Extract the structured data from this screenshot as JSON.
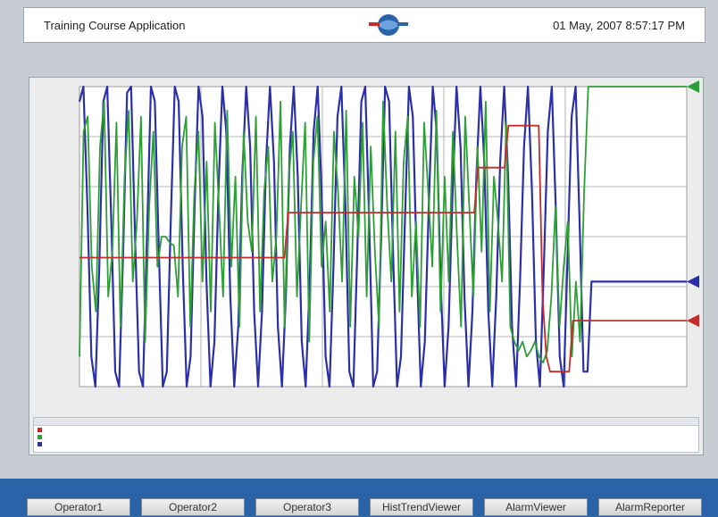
{
  "header": {
    "app_title": "Training Course Application",
    "datetime": "01 May, 2007 8:57:17 PM"
  },
  "chart_data": {
    "type": "line",
    "title": "",
    "xlabel": "",
    "ylabel": "",
    "ylim": [
      0,
      100
    ],
    "grid": true,
    "series": [
      {
        "color": "#2b2fa8",
        "marker_end": "triangle",
        "values": [
          95,
          100,
          60,
          10,
          0,
          40,
          95,
          100,
          55,
          5,
          0,
          45,
          98,
          100,
          50,
          5,
          0,
          50,
          100,
          95,
          45,
          0,
          5,
          55,
          100,
          95,
          40,
          0,
          10,
          60,
          100,
          90,
          35,
          0,
          15,
          65,
          100,
          85,
          30,
          0,
          20,
          70,
          100,
          80,
          25,
          0,
          25,
          75,
          100,
          75,
          20,
          0,
          30,
          80,
          100,
          70,
          15,
          0,
          35,
          85,
          100,
          65,
          10,
          0,
          40,
          90,
          100,
          60,
          5,
          0,
          45,
          95,
          100,
          55,
          0,
          5,
          50,
          100,
          95,
          45,
          0,
          10,
          55,
          100,
          90,
          40,
          0,
          15,
          60,
          100,
          85,
          35,
          0,
          20,
          65,
          100,
          80,
          30,
          0,
          25,
          70,
          100,
          75,
          25,
          0,
          30,
          75,
          100,
          70,
          20,
          0,
          35,
          80,
          100,
          65,
          15,
          0,
          40,
          85,
          100,
          60,
          10,
          0,
          45,
          90,
          100,
          55,
          5,
          5,
          35,
          35,
          35,
          35,
          35,
          35,
          35,
          35,
          35,
          35,
          35,
          35,
          35,
          35,
          35,
          35,
          35,
          35,
          35,
          35,
          35,
          35,
          35,
          35,
          35
        ]
      },
      {
        "color": "#2e9e37",
        "marker_end": "triangle",
        "values": [
          10,
          85,
          90,
          40,
          25,
          80,
          95,
          30,
          45,
          88,
          20,
          70,
          92,
          35,
          55,
          90,
          15,
          60,
          85,
          40,
          50,
          50,
          48,
          47,
          30,
          80,
          90,
          20,
          65,
          85,
          35,
          75,
          25,
          88,
          60,
          30,
          92,
          40,
          70,
          20,
          85,
          55,
          45,
          90,
          25,
          65,
          80,
          35,
          50,
          95,
          20,
          70,
          85,
          30,
          60,
          88,
          15,
          75,
          90,
          40,
          55,
          25,
          85,
          65,
          35,
          92,
          20,
          70,
          50,
          88,
          30,
          80,
          45,
          20,
          95,
          60,
          35,
          85,
          25,
          75,
          90,
          30,
          55,
          20,
          88,
          65,
          40,
          92,
          25,
          70,
          35,
          85,
          50,
          20,
          90,
          60,
          30,
          80,
          45,
          95,
          25,
          70,
          55,
          35,
          88,
          20,
          15,
          12,
          15,
          10,
          12,
          15,
          10,
          8,
          12,
          30,
          60,
          20,
          40,
          55,
          10,
          35,
          15,
          65,
          100,
          100,
          100,
          100,
          100,
          100,
          100,
          100,
          100,
          100,
          100,
          100,
          100,
          100,
          100,
          100,
          100,
          100,
          100,
          100,
          100,
          100,
          100,
          100,
          100
        ]
      },
      {
        "color": "#c72a2a",
        "marker_end": "triangle",
        "values": [
          43,
          43,
          43,
          43,
          43,
          43,
          43,
          43,
          43,
          43,
          43,
          43,
          43,
          43,
          43,
          43,
          43,
          43,
          43,
          43,
          43,
          43,
          43,
          43,
          43,
          43,
          43,
          43,
          43,
          43,
          43,
          43,
          43,
          43,
          43,
          43,
          43,
          43,
          43,
          43,
          43,
          43,
          43,
          43,
          43,
          43,
          43,
          43,
          43,
          43,
          43,
          43,
          43,
          43,
          43,
          58,
          58,
          58,
          58,
          58,
          58,
          58,
          58,
          58,
          58,
          58,
          58,
          58,
          58,
          58,
          58,
          58,
          58,
          58,
          58,
          58,
          58,
          58,
          58,
          58,
          58,
          58,
          58,
          58,
          58,
          58,
          58,
          58,
          58,
          58,
          58,
          58,
          58,
          58,
          58,
          58,
          58,
          58,
          58,
          58,
          58,
          58,
          58,
          58,
          58,
          73,
          73,
          73,
          73,
          73,
          73,
          73,
          73,
          87,
          87,
          87,
          87,
          87,
          87,
          87,
          87,
          87,
          30,
          10,
          5,
          5,
          5,
          5,
          5,
          5,
          22,
          22,
          22,
          22,
          22,
          22,
          22,
          22,
          22,
          22,
          22,
          22,
          22,
          22,
          22,
          22,
          22,
          22,
          22,
          22,
          22,
          22,
          22,
          22,
          22,
          22,
          22,
          22,
          22,
          22,
          22
        ]
      }
    ],
    "x_tick_labels": [
      "",
      "",
      "",
      "",
      ""
    ],
    "y_tick_labels": [
      "",
      "",
      "",
      "",
      "",
      "",
      ""
    ]
  },
  "legend_table": {
    "headers": [
      "",
      "",
      "",
      "",
      ""
    ],
    "rows": [
      {
        "color": "#c72a2a",
        "cells": [
          "",
          "",
          "",
          "",
          ""
        ]
      },
      {
        "color": "#2e9e37",
        "cells": [
          "",
          "",
          "",
          "",
          ""
        ]
      },
      {
        "color": "#2b2fa8",
        "cells": [
          "",
          "",
          "",
          "",
          ""
        ]
      }
    ]
  },
  "nav": {
    "buttons": [
      "Operator1",
      "Operator2",
      "Operator3",
      "HistTrendViewer",
      "AlarmViewer",
      "AlarmReporter"
    ]
  }
}
